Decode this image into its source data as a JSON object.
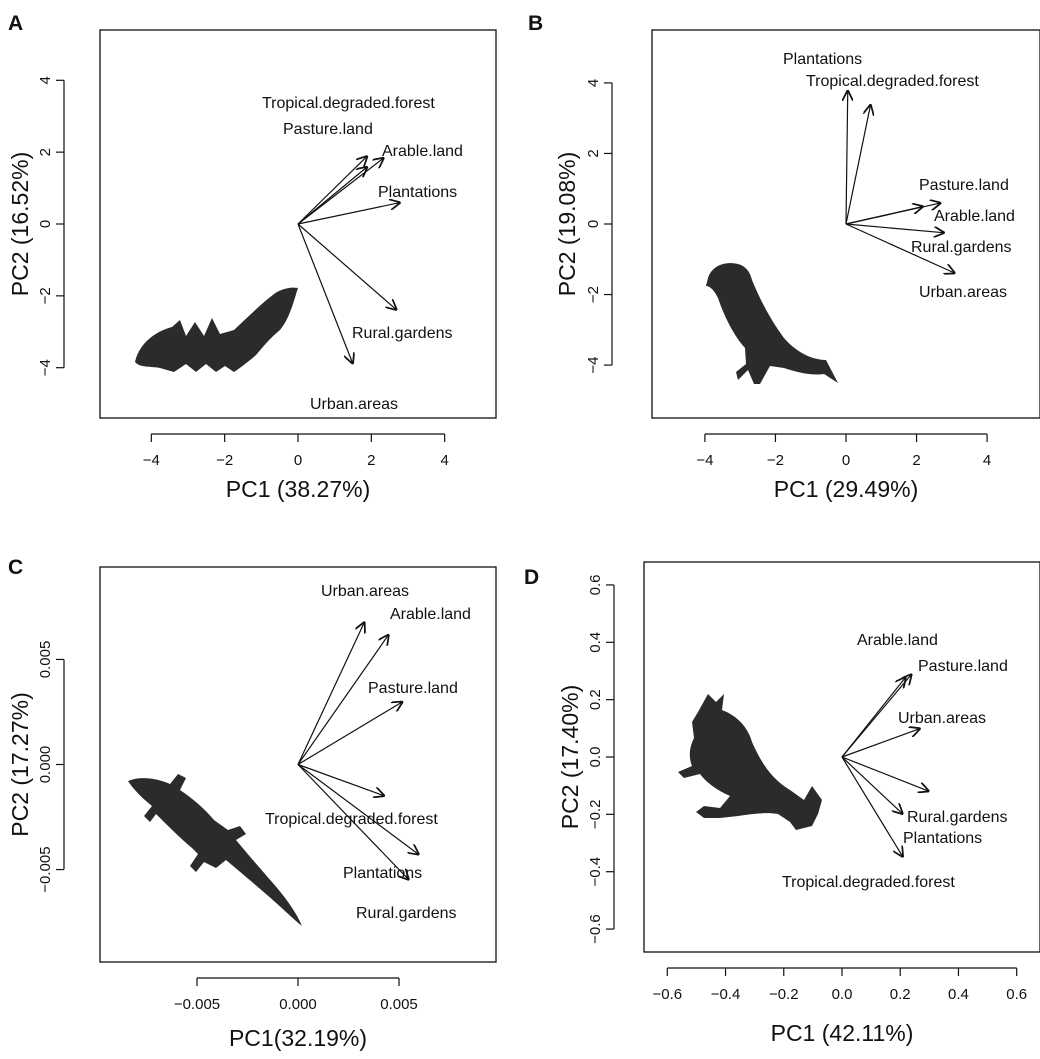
{
  "chart_data": [
    {
      "type": "scatter",
      "subtype": "pca-biplot-loadings",
      "panel": "A",
      "xlabel": "PC1 (38.27%)",
      "ylabel": "PC2 (16.52%)",
      "xlim": [
        -5.4,
        5.4
      ],
      "ylim": [
        -5.4,
        5.4
      ],
      "xticks": [
        -4,
        -2,
        0,
        2,
        4
      ],
      "xtick_labels": [
        "−4",
        "−2",
        "0",
        "2",
        "4"
      ],
      "yticks": [
        -4,
        -2,
        0,
        2,
        4
      ],
      "ytick_labels": [
        "−4",
        "−2",
        "0",
        "2",
        "4"
      ],
      "silhouette": "bat",
      "vectors": [
        {
          "name": "Tropical.degraded.forest",
          "x": 1.9,
          "y": 1.9
        },
        {
          "name": "Pasture.land",
          "x": 1.9,
          "y": 1.6
        },
        {
          "name": "Arable.land",
          "x": 2.35,
          "y": 1.85
        },
        {
          "name": "Plantations",
          "x": 2.8,
          "y": 0.6
        },
        {
          "name": "Rural.gardens",
          "x": 2.7,
          "y": -2.4
        },
        {
          "name": "Urban.areas",
          "x": 1.5,
          "y": -3.9
        }
      ]
    },
    {
      "type": "scatter",
      "subtype": "pca-biplot-loadings",
      "panel": "B",
      "xlabel": "PC1 (29.49%)",
      "ylabel": "PC2 (19.08%)",
      "xlim": [
        -5.5,
        5.5
      ],
      "ylim": [
        -5.5,
        5.5
      ],
      "xticks": [
        -4,
        -2,
        0,
        2,
        4
      ],
      "xtick_labels": [
        "−4",
        "−2",
        "0",
        "2",
        "4"
      ],
      "yticks": [
        -4,
        -2,
        0,
        2,
        4
      ],
      "ytick_labels": [
        "−4",
        "−2",
        "0",
        "2",
        "4"
      ],
      "silhouette": "falcon",
      "vectors": [
        {
          "name": "Plantations",
          "x": 0.05,
          "y": 3.8
        },
        {
          "name": "Tropical.degraded.forest",
          "x": 0.7,
          "y": 3.4
        },
        {
          "name": "Pasture.land",
          "x": 2.7,
          "y": 0.6
        },
        {
          "name": "Arable.land",
          "x": 2.2,
          "y": 0.5
        },
        {
          "name": "Rural.gardens",
          "x": 2.8,
          "y": -0.25
        },
        {
          "name": "Urban.areas",
          "x": 3.1,
          "y": -1.4
        }
      ]
    },
    {
      "type": "scatter",
      "subtype": "pca-biplot-loadings",
      "panel": "C",
      "xlabel": "PC1(32.19%)",
      "ylabel": "PC2 (17.27%)",
      "xlim": [
        -0.0098,
        0.0098
      ],
      "ylim": [
        -0.0094,
        0.0094
      ],
      "xticks": [
        -0.005,
        0,
        0.005
      ],
      "xtick_labels": [
        "−0.005",
        "0.000",
        "0.005"
      ],
      "yticks": [
        -0.005,
        0,
        0.005
      ],
      "ytick_labels": [
        "−0.005",
        "0.000",
        "0.005"
      ],
      "silhouette": "lizard",
      "vectors": [
        {
          "name": "Urban.areas",
          "x": 0.0033,
          "y": 0.0068
        },
        {
          "name": "Arable.land",
          "x": 0.0045,
          "y": 0.0062
        },
        {
          "name": "Pasture.land",
          "x": 0.0052,
          "y": 0.003
        },
        {
          "name": "Tropical.degraded.forest",
          "x": 0.0043,
          "y": -0.0015
        },
        {
          "name": "Plantations",
          "x": 0.006,
          "y": -0.0043
        },
        {
          "name": "Rural.gardens",
          "x": 0.0055,
          "y": -0.0055
        }
      ]
    },
    {
      "type": "scatter",
      "subtype": "pca-biplot-loadings",
      "panel": "D",
      "xlabel": "PC1 (42.11%)",
      "ylabel": "PC2 (17.40%)",
      "xlim": [
        -0.68,
        0.68
      ],
      "ylim": [
        -0.68,
        0.68
      ],
      "xticks": [
        -0.6,
        -0.4,
        -0.2,
        0.0,
        0.2,
        0.4,
        0.6
      ],
      "xtick_labels": [
        "−0.6",
        "−0.4",
        "−0.2",
        "0.0",
        "0.2",
        "0.4",
        "0.6"
      ],
      "yticks": [
        -0.6,
        -0.4,
        -0.2,
        0.0,
        0.2,
        0.4,
        0.6
      ],
      "ytick_labels": [
        "−0.6",
        "−0.4",
        "−0.2",
        "0.0",
        "0.2",
        "0.4",
        "0.6"
      ],
      "silhouette": "frog",
      "vectors": [
        {
          "name": "Arable.land",
          "x": 0.22,
          "y": 0.28
        },
        {
          "name": "Pasture.land",
          "x": 0.24,
          "y": 0.29
        },
        {
          "name": "Urban.areas",
          "x": 0.27,
          "y": 0.1
        },
        {
          "name": "Rural.gardens",
          "x": 0.3,
          "y": -0.12
        },
        {
          "name": "Plantations",
          "x": 0.21,
          "y": -0.2
        },
        {
          "name": "Tropical.degraded.forest",
          "x": 0.21,
          "y": -0.35
        }
      ]
    }
  ]
}
